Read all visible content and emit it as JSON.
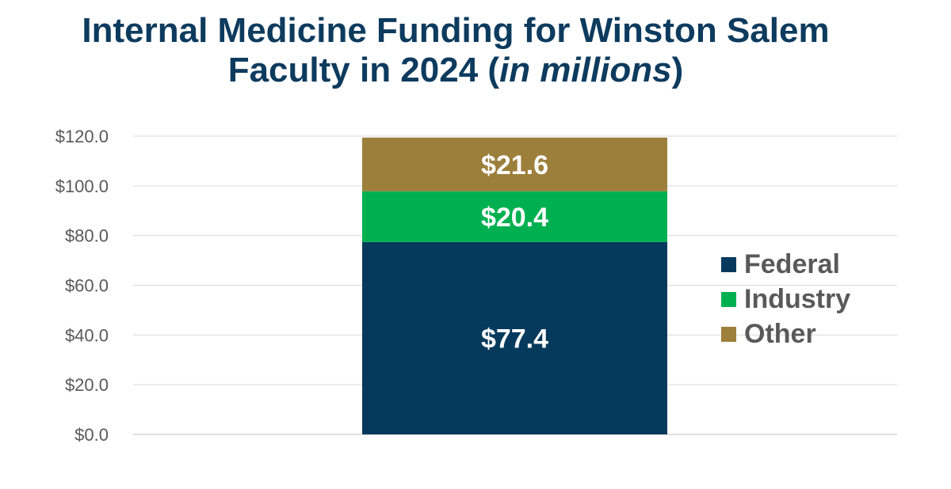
{
  "title": {
    "line1": "Internal Medicine Funding for Winston Salem",
    "line2_prefix": "Faculty in 2024 (",
    "line2_italic": "in millions",
    "line2_suffix": ")"
  },
  "chart_data": {
    "type": "bar",
    "stacked": true,
    "categories": [
      ""
    ],
    "series": [
      {
        "name": "Federal",
        "values": [
          77.4
        ],
        "label": "$77.4",
        "color": "#053a5c"
      },
      {
        "name": "Industry",
        "values": [
          20.4
        ],
        "label": "$20.4",
        "color": "#00b050"
      },
      {
        "name": "Other",
        "values": [
          21.6
        ],
        "label": "$21.6",
        "color": "#9c7f3a"
      }
    ],
    "ylim": [
      0,
      120
    ],
    "yticks": [
      "$0.0",
      "$20.0",
      "$40.0",
      "$60.0",
      "$80.0",
      "$100.0",
      "$120.0"
    ],
    "grid": true,
    "legend_position": "right"
  }
}
